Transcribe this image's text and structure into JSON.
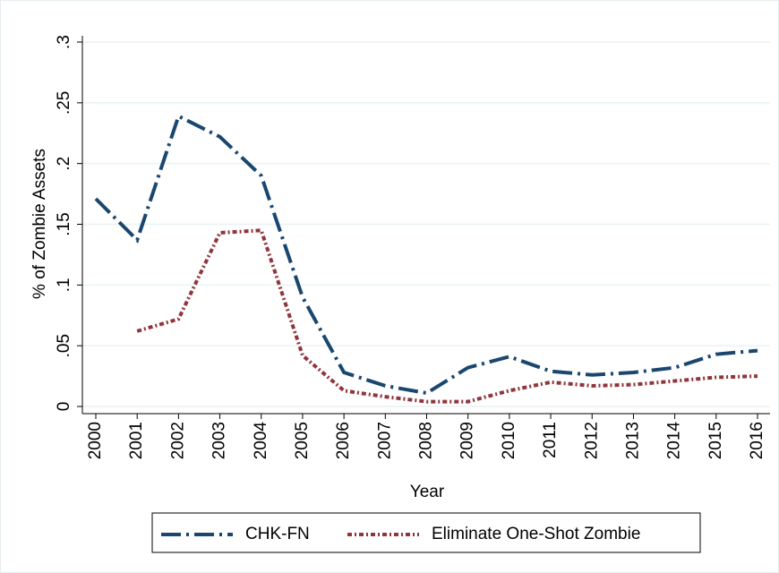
{
  "chart_data": {
    "type": "line",
    "ylabel": "% of Zombie Assets",
    "xlabel": "Year",
    "x": [
      2000,
      2001,
      2002,
      2003,
      2004,
      2005,
      2006,
      2007,
      2008,
      2009,
      2010,
      2011,
      2012,
      2013,
      2014,
      2015,
      2016
    ],
    "xlim": [
      2000,
      2016
    ],
    "xticks": [
      2000,
      2001,
      2002,
      2003,
      2004,
      2005,
      2006,
      2007,
      2008,
      2009,
      2010,
      2011,
      2012,
      2013,
      2014,
      2015,
      2016
    ],
    "ylim": [
      0,
      0.3
    ],
    "yticks": [
      0,
      {
        "value": 0.05,
        "label": ".05"
      },
      {
        "value": 0.1,
        "label": ".1"
      },
      {
        "value": 0.15,
        "label": ".15"
      },
      {
        "value": 0.2,
        "label": ".2"
      },
      {
        "value": 0.25,
        "label": ".25"
      },
      {
        "value": 0.3,
        "label": ".3"
      }
    ],
    "grid": true,
    "legend": "bottom",
    "series": [
      {
        "name": "CHK-FN",
        "color": "#1a476f",
        "dash": "longdash-dot",
        "values": [
          0.171,
          0.137,
          0.239,
          0.222,
          0.19,
          0.09,
          0.028,
          0.017,
          0.011,
          0.032,
          0.041,
          0.029,
          0.026,
          0.028,
          0.032,
          0.043,
          0.046
        ]
      },
      {
        "name": "Eliminate One-Shot Zombie",
        "color": "#90353b",
        "dash": "shortdash-dot",
        "values": [
          null,
          0.062,
          0.072,
          0.143,
          0.145,
          0.042,
          0.013,
          0.008,
          0.004,
          0.004,
          0.013,
          0.02,
          0.017,
          0.018,
          0.021,
          0.024,
          0.025
        ]
      }
    ]
  }
}
